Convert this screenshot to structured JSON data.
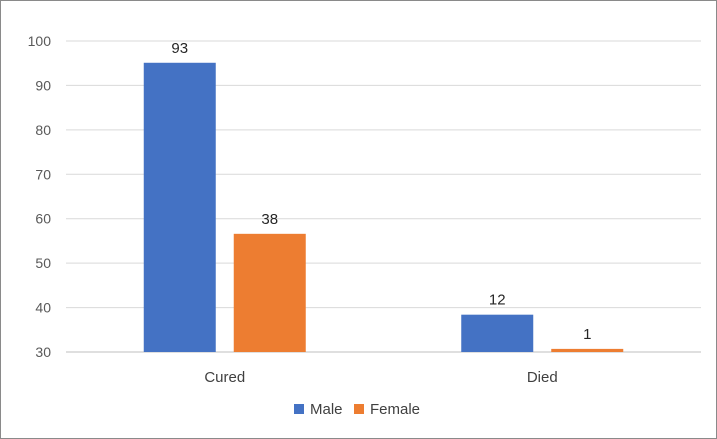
{
  "chart_data": {
    "type": "bar",
    "title": "",
    "xlabel": "",
    "ylabel": "",
    "categories": [
      "Cured",
      "Died"
    ],
    "series": [
      {
        "name": "Male",
        "values": [
          93,
          12
        ],
        "color": "#4472c4"
      },
      {
        "name": "Female",
        "values": [
          38,
          1
        ],
        "color": "#ed7d31"
      }
    ],
    "yticks": [
      30,
      40,
      50,
      60,
      70,
      80,
      90,
      100
    ],
    "ylim": [
      0,
      100
    ],
    "grid": true,
    "legend": "bottom-center"
  }
}
